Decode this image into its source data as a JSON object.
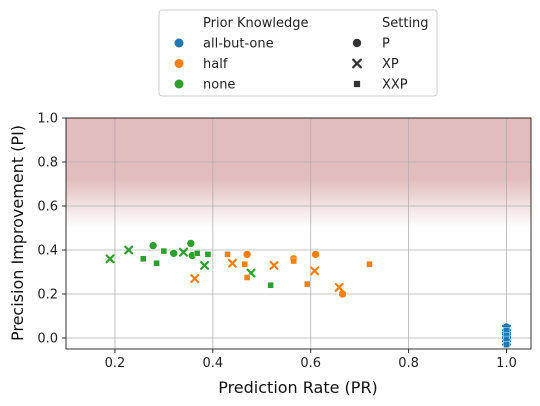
{
  "chart_data": {
    "type": "scatter",
    "xlabel": "Prediction Rate (PR)",
    "ylabel": "Precision Improvement (PI)",
    "xlim": [
      0.1,
      1.05
    ],
    "ylim": [
      -0.05,
      1.0
    ],
    "xticks": [
      "0.2",
      "0.4",
      "0.6",
      "0.8",
      "1.0"
    ],
    "yticks": [
      "0.0",
      "0.2",
      "0.4",
      "0.6",
      "0.8",
      "1.0"
    ],
    "grid": true,
    "background_band": {
      "from": 0.5,
      "to": 1.0,
      "color": "#c47b7b"
    },
    "legend": {
      "placement": "top-center",
      "hue_title": "Prior Knowledge",
      "style_title": "Setting",
      "hue_entries": [
        {
          "label": "all-but-one",
          "color": "#1f77b4"
        },
        {
          "label": "half",
          "color": "#ff7f0e"
        },
        {
          "label": "none",
          "color": "#2ca02c"
        }
      ],
      "style_entries": [
        {
          "label": "P",
          "marker": "circle"
        },
        {
          "label": "XP",
          "marker": "x"
        },
        {
          "label": "XXP",
          "marker": "square"
        }
      ]
    },
    "series": [
      {
        "name": "none",
        "color": "#2ca02c",
        "points": [
          {
            "x": 0.278,
            "y": 0.42,
            "m": "circle"
          },
          {
            "x": 0.32,
            "y": 0.385,
            "m": "circle"
          },
          {
            "x": 0.355,
            "y": 0.43,
            "m": "circle"
          },
          {
            "x": 0.358,
            "y": 0.375,
            "m": "circle"
          },
          {
            "x": 0.19,
            "y": 0.36,
            "m": "x"
          },
          {
            "x": 0.228,
            "y": 0.4,
            "m": "x"
          },
          {
            "x": 0.34,
            "y": 0.39,
            "m": "x"
          },
          {
            "x": 0.383,
            "y": 0.33,
            "m": "x"
          },
          {
            "x": 0.478,
            "y": 0.295,
            "m": "x"
          },
          {
            "x": 0.258,
            "y": 0.36,
            "m": "square"
          },
          {
            "x": 0.285,
            "y": 0.34,
            "m": "square"
          },
          {
            "x": 0.3,
            "y": 0.395,
            "m": "square"
          },
          {
            "x": 0.368,
            "y": 0.385,
            "m": "square"
          },
          {
            "x": 0.39,
            "y": 0.38,
            "m": "square"
          },
          {
            "x": 0.518,
            "y": 0.24,
            "m": "square"
          }
        ]
      },
      {
        "name": "half",
        "color": "#ff7f0e",
        "points": [
          {
            "x": 0.47,
            "y": 0.38,
            "m": "circle"
          },
          {
            "x": 0.565,
            "y": 0.36,
            "m": "circle"
          },
          {
            "x": 0.61,
            "y": 0.38,
            "m": "circle"
          },
          {
            "x": 0.665,
            "y": 0.2,
            "m": "circle"
          },
          {
            "x": 0.363,
            "y": 0.27,
            "m": "x"
          },
          {
            "x": 0.44,
            "y": 0.34,
            "m": "x"
          },
          {
            "x": 0.525,
            "y": 0.33,
            "m": "x"
          },
          {
            "x": 0.608,
            "y": 0.305,
            "m": "x"
          },
          {
            "x": 0.658,
            "y": 0.23,
            "m": "x"
          },
          {
            "x": 0.43,
            "y": 0.38,
            "m": "square"
          },
          {
            "x": 0.465,
            "y": 0.335,
            "m": "square"
          },
          {
            "x": 0.47,
            "y": 0.275,
            "m": "square"
          },
          {
            "x": 0.565,
            "y": 0.35,
            "m": "square"
          },
          {
            "x": 0.593,
            "y": 0.245,
            "m": "square"
          },
          {
            "x": 0.72,
            "y": 0.335,
            "m": "square"
          }
        ]
      },
      {
        "name": "all-but-one",
        "color": "#1f77b4",
        "points": [
          {
            "x": 1.0,
            "y": 0.05,
            "m": "circle"
          },
          {
            "x": 1.0,
            "y": 0.03,
            "m": "circle"
          },
          {
            "x": 1.0,
            "y": 0.015,
            "m": "circle"
          },
          {
            "x": 1.0,
            "y": 0.0,
            "m": "circle"
          },
          {
            "x": 1.0,
            "y": 0.04,
            "m": "x"
          },
          {
            "x": 1.0,
            "y": 0.02,
            "m": "x"
          },
          {
            "x": 1.0,
            "y": 0.0,
            "m": "x"
          },
          {
            "x": 1.0,
            "y": -0.015,
            "m": "x"
          },
          {
            "x": 1.0,
            "y": 0.035,
            "m": "square"
          },
          {
            "x": 1.0,
            "y": 0.01,
            "m": "square"
          },
          {
            "x": 1.0,
            "y": -0.005,
            "m": "square"
          },
          {
            "x": 1.0,
            "y": -0.03,
            "m": "square"
          }
        ]
      }
    ]
  }
}
